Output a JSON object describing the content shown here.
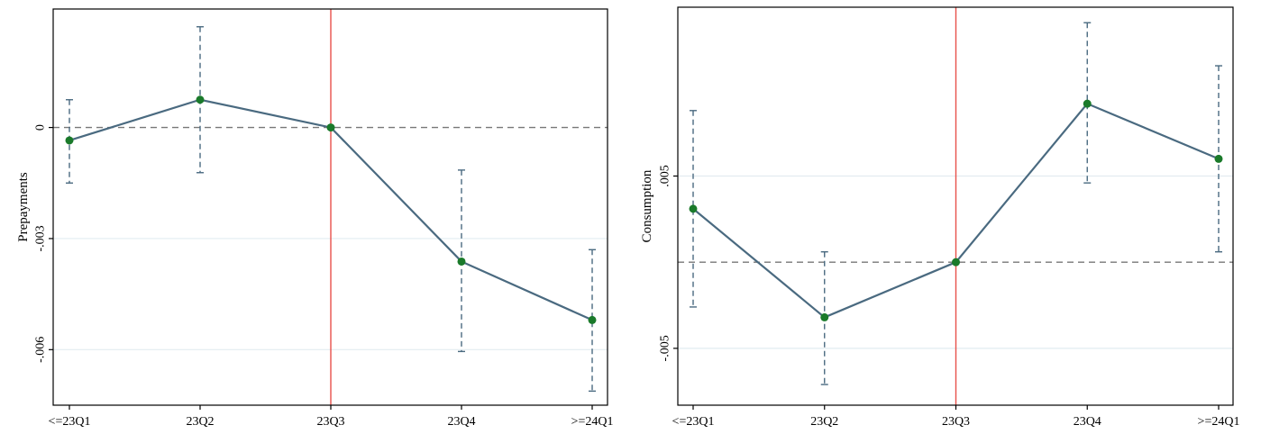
{
  "chart_data": [
    {
      "type": "line",
      "categories": [
        "<=23Q1",
        "23Q2",
        "23Q3",
        "23Q4",
        ">=24Q1"
      ],
      "title": "",
      "xlabel": "",
      "ylabel": "Prepayments",
      "ylim": [
        -0.0075,
        0.0032
      ],
      "yticks": [
        0,
        -0.003,
        -0.006
      ],
      "ytick_labels": [
        "0",
        "-.003",
        "-.006"
      ],
      "series": [
        {
          "values": [
            -0.00035,
            0.00075,
            0.0,
            -0.00362,
            -0.0052
          ],
          "ci_low": [
            -0.0015,
            -0.00122,
            0.0,
            -0.00605,
            -0.00712
          ],
          "ci_high": [
            0.00075,
            0.00272,
            0.0,
            -0.00115,
            -0.0033
          ]
        }
      ],
      "reference_line_y": 0,
      "event_line_category": "23Q3",
      "colors": {
        "line": "#4a6a80",
        "marker": "#1a7a2a",
        "ci": "#4a6a80",
        "event": "#e8504a",
        "zero": "#777777",
        "grid": "#e2ecf0"
      },
      "grid": true
    },
    {
      "type": "line",
      "categories": [
        "<=23Q1",
        "23Q2",
        "23Q3",
        "23Q4",
        ">=24Q1"
      ],
      "title": "",
      "xlabel": "",
      "ylabel": "Consumption",
      "ylim": [
        -0.0083,
        0.0148
      ],
      "yticks": [
        0.005,
        -0.005
      ],
      "ytick_labels": [
        ".005",
        "-.005"
      ],
      "series": [
        {
          "values": [
            0.0031,
            -0.0032,
            0.0,
            0.0092,
            0.006
          ],
          "ci_low": [
            -0.0026,
            -0.0071,
            0.0,
            0.0046,
            0.0006
          ],
          "ci_high": [
            0.0088,
            0.0006,
            0.0,
            0.0139,
            0.0114
          ]
        }
      ],
      "reference_line_y": 0,
      "event_line_category": "23Q3",
      "colors": {
        "line": "#4a6a80",
        "marker": "#1a7a2a",
        "ci": "#4a6a80",
        "event": "#e8504a",
        "zero": "#777777",
        "grid": "#e2ecf0"
      },
      "grid": true
    }
  ]
}
